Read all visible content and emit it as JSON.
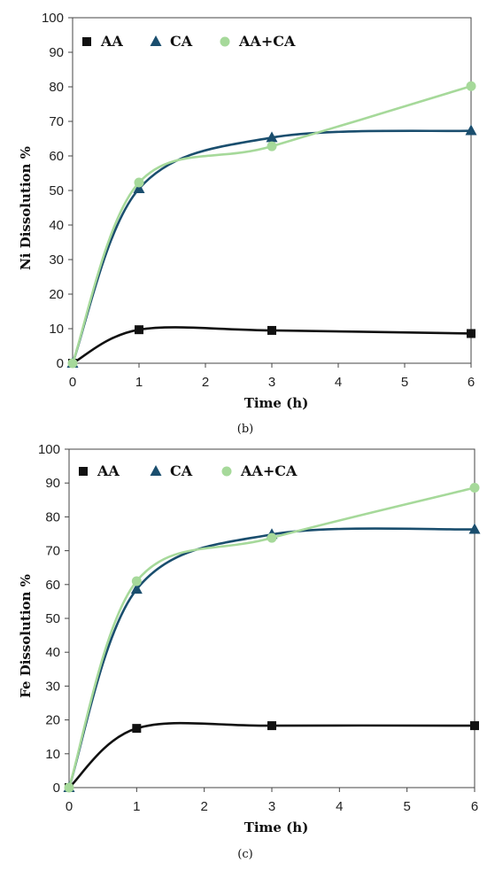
{
  "chart_data": [
    {
      "type": "line",
      "panel": "(b)",
      "xlabel": "Time (h)",
      "ylabel": "Ni Dissolution %",
      "xlim": [
        0,
        6
      ],
      "ylim": [
        0,
        100
      ],
      "x_ticks": [
        "0",
        "1",
        "2",
        "3",
        "4",
        "5",
        "6"
      ],
      "y_ticks": [
        "0",
        "10",
        "20",
        "30",
        "40",
        "50",
        "60",
        "70",
        "80",
        "90",
        "100"
      ],
      "grid": false,
      "legend_position": "top-left",
      "smooth": true,
      "series": [
        {
          "name": "AA",
          "marker": "square",
          "color": "#111111",
          "x": [
            0,
            1,
            3,
            6
          ],
          "y": [
            0,
            9.7,
            9.5,
            8.6
          ]
        },
        {
          "name": "CA",
          "marker": "triangle",
          "color": "#1a4e6e",
          "x": [
            0,
            1,
            3,
            6
          ],
          "y": [
            0,
            50.5,
            65.3,
            67.3
          ]
        },
        {
          "name": "AA+CA",
          "marker": "circle",
          "color": "#a6d99a",
          "x": [
            0,
            1,
            3,
            6
          ],
          "y": [
            0,
            52.3,
            62.8,
            80.2
          ]
        }
      ]
    },
    {
      "type": "line",
      "panel": "(c)",
      "xlabel": "Time (h)",
      "ylabel": "Fe Dissolution %",
      "xlim": [
        0,
        6
      ],
      "ylim": [
        0,
        100
      ],
      "x_ticks": [
        "0",
        "1",
        "2",
        "3",
        "4",
        "5",
        "6"
      ],
      "y_ticks": [
        "0",
        "10",
        "20",
        "30",
        "40",
        "50",
        "60",
        "70",
        "80",
        "90",
        "100"
      ],
      "grid": false,
      "legend_position": "top-left",
      "smooth": true,
      "series": [
        {
          "name": "AA",
          "marker": "square",
          "color": "#111111",
          "x": [
            0,
            1,
            3,
            6
          ],
          "y": [
            0,
            17.5,
            18.3,
            18.3
          ]
        },
        {
          "name": "CA",
          "marker": "triangle",
          "color": "#1a4e6e",
          "x": [
            0,
            1,
            3,
            6
          ],
          "y": [
            0,
            58.6,
            74.8,
            76.3
          ]
        },
        {
          "name": "AA+CA",
          "marker": "circle",
          "color": "#a6d99a",
          "x": [
            0,
            1,
            3,
            6
          ],
          "y": [
            0,
            61.0,
            73.8,
            88.6
          ]
        }
      ]
    }
  ]
}
